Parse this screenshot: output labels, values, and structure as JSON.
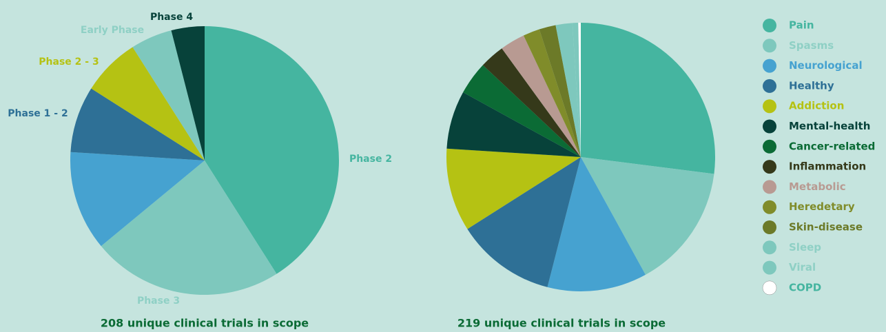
{
  "chart_data": [
    {
      "type": "pie",
      "categories": [
        "Phase 2",
        "Phase 3",
        null,
        "Phase 1 - 2",
        "Phase 2 - 3",
        "Early Phase",
        "Phase 4"
      ],
      "values": [
        41,
        23,
        12,
        8,
        7,
        5,
        4
      ],
      "colors": [
        "#45b5a0",
        "#7ec8bd",
        "#46a2d0",
        "#2e7096",
        "#b5c213",
        "#7ec8bd",
        "#07423a"
      ],
      "caption": "208 unique clinical trials in scope"
    },
    {
      "type": "pie",
      "legend": "right",
      "categories": [
        "Pain",
        "Spasms",
        "Neurological",
        "Healthy",
        "Addiction",
        "Mental-health",
        "Cancer-related",
        "Inflammation",
        "Metabolic",
        "Heredetary",
        "Skin-disease",
        "Sleep",
        "Viral",
        "COPD"
      ],
      "values": [
        27,
        15,
        12,
        12,
        10,
        7,
        4,
        3,
        3,
        2,
        2,
        2,
        0.7,
        0.3
      ],
      "colors": [
        "#45b5a0",
        "#7ec8bd",
        "#46a2d0",
        "#2e7096",
        "#b5c213",
        "#07423a",
        "#0b6b35",
        "#35391a",
        "#b89a92",
        "#808c2a",
        "#6c7a28",
        "#7ec8bd",
        "#7ec8bd",
        "#ffffff"
      ],
      "caption": "219 unique clinical trials in scope"
    }
  ]
}
